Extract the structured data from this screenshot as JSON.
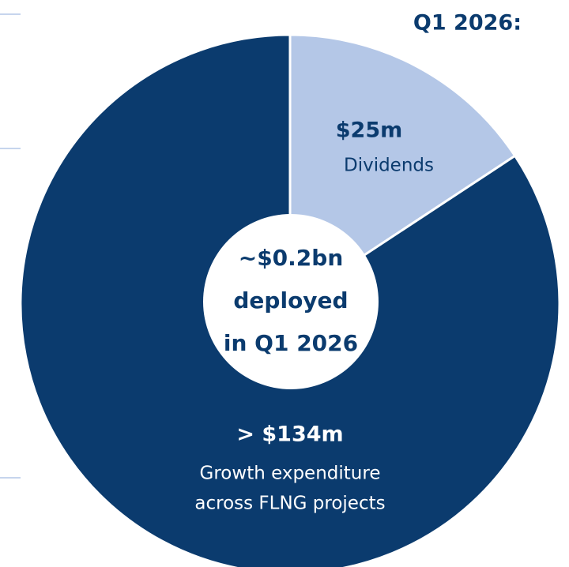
{
  "chart_data": {
    "type": "pie",
    "title": "Q1 2026:",
    "categories": [
      "Dividends",
      "Growth expenditure across FLNG projects"
    ],
    "category_lines": [
      [
        "Dividends"
      ],
      [
        "Growth expenditure",
        "across FLNG projects"
      ]
    ],
    "values": [
      25,
      134
    ],
    "value_labels": [
      "$25m",
      "> $134m"
    ],
    "colors": [
      "#b4c7e7",
      "#0b3b6e"
    ],
    "center_text": [
      "~$0.2bn",
      "deployed",
      "in Q1 2026"
    ]
  }
}
